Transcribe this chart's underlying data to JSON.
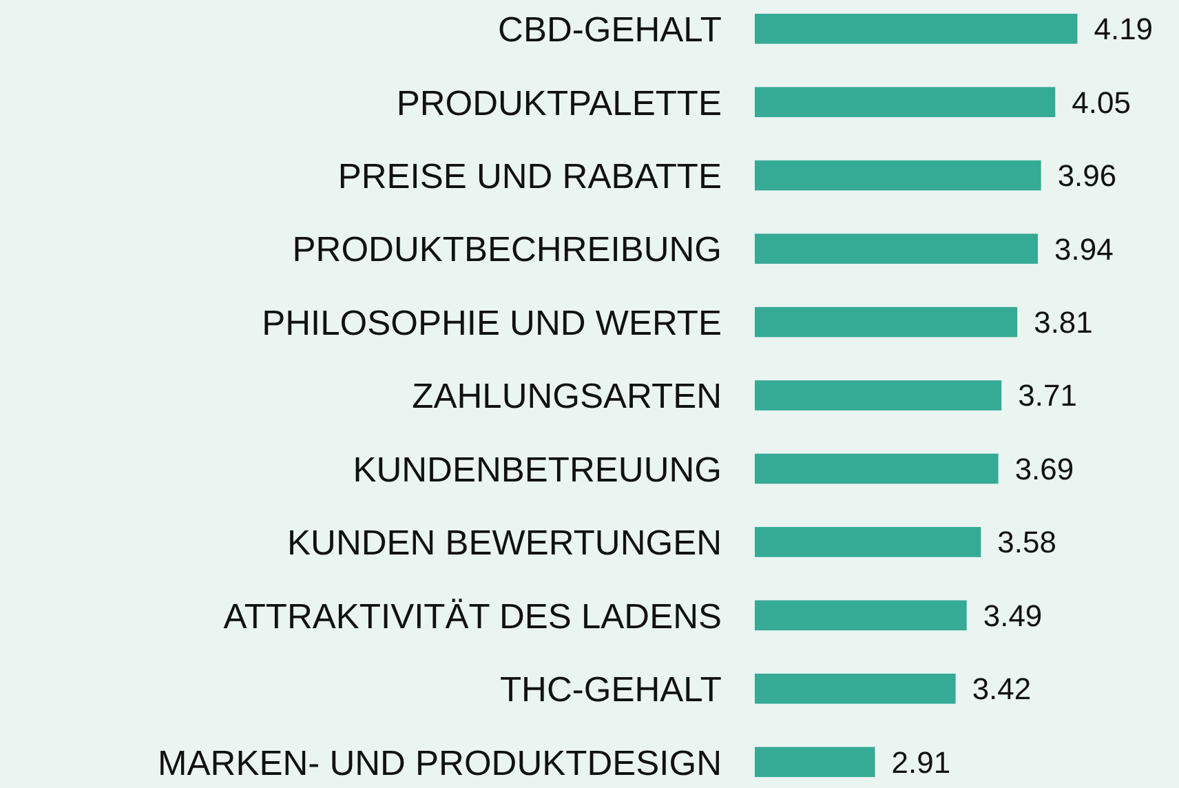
{
  "chart_data": {
    "type": "bar",
    "orientation": "horizontal",
    "categories": [
      "CBD-GEHALT",
      "PRODUKTPALETTE",
      "PREISE UND RABATTE",
      "PRODUKTBECHREIBUNG",
      "PHILOSOPHIE UND WERTE",
      "ZAHLUNGSARTEN",
      "KUNDENBETREUUNG",
      "KUNDEN BEWERTUNGEN",
      "ATTRAKTIVITÄT DES LADENS",
      "THC-GEHALT",
      "MARKEN- UND PRODUKTDESIGN"
    ],
    "values": [
      4.19,
      4.05,
      3.96,
      3.94,
      3.81,
      3.71,
      3.69,
      3.58,
      3.49,
      3.42,
      2.91
    ],
    "color": "#35aa94",
    "xlim": [
      2.15,
      4.85
    ],
    "data_labels": true
  }
}
